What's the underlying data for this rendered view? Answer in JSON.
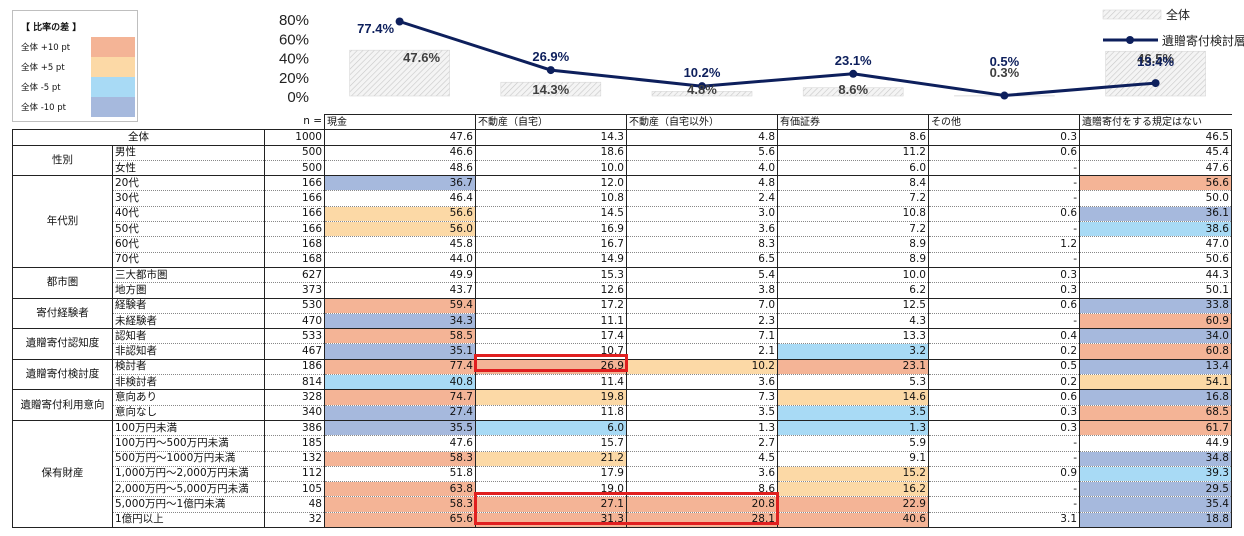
{
  "legend_box": {
    "title": "【 比率の差 】",
    "items": [
      {
        "label": "全体 +10 pt",
        "color": "#f4b496",
        "cls": "hl-p10"
      },
      {
        "label": "全体 +5 pt",
        "color": "#fcd9a6",
        "cls": "hl-p5"
      },
      {
        "label": "全体 -5 pt",
        "color": "#a8daf5",
        "cls": "hl-m5"
      },
      {
        "label": "全体 -10 pt",
        "color": "#a6b9dd",
        "cls": "hl-m10"
      }
    ]
  },
  "chart_data": {
    "type": "bar",
    "categories": [
      "現金",
      "不動産（自宅）",
      "不動産（自宅以外）",
      "有価証券",
      "その他",
      "遺贈寄付をする規定はない"
    ],
    "yticks": [
      "0%",
      "20%",
      "40%",
      "60%",
      "80%"
    ],
    "ylim": [
      0,
      80
    ],
    "legend": [
      "全体",
      "遺贈寄付検討層"
    ],
    "legend_position": "top-right",
    "series": [
      {
        "name": "全体",
        "kind": "bar",
        "values": [
          47.6,
          14.3,
          4.8,
          8.6,
          0.3,
          46.5
        ],
        "labels": [
          "47.6%",
          "14.3%",
          "4.8%",
          "8.6%",
          "0.3%",
          "46.5%"
        ]
      },
      {
        "name": "遺贈寄付検討層",
        "kind": "line",
        "values": [
          77.4,
          26.9,
          10.2,
          23.1,
          0.5,
          13.4
        ],
        "labels": [
          "77.4%",
          "26.9%",
          "10.2%",
          "23.1%",
          "0.5%",
          "13.4%"
        ]
      }
    ],
    "colors": {
      "line": "#0d1f5c",
      "bar_fill": "#f2f2f2",
      "bar_hatch": "#c8c8c8"
    }
  },
  "table": {
    "n_label": "n =",
    "columns": [
      "現金",
      "不動産（自宅）",
      "不動産（自宅以外）",
      "有価証券",
      "その他",
      "遺贈寄付をする規定はない"
    ],
    "total_row": {
      "label": "全体",
      "n": "1000",
      "cells": [
        "47.6",
        "14.3",
        "4.8",
        "8.6",
        "0.3",
        "46.5"
      ],
      "hl": [
        "",
        "",
        "",
        "",
        "",
        ""
      ]
    },
    "groups": [
      {
        "name": "性別",
        "rows": [
          {
            "label": "男性",
            "n": "500",
            "cells": [
              "46.6",
              "18.6",
              "5.6",
              "11.2",
              "0.6",
              "45.4"
            ],
            "hl": [
              "",
              "",
              "",
              "",
              "",
              ""
            ]
          },
          {
            "label": "女性",
            "n": "500",
            "cells": [
              "48.6",
              "10.0",
              "4.0",
              "6.0",
              "-",
              "47.6"
            ],
            "hl": [
              "",
              "",
              "",
              "",
              "",
              ""
            ]
          }
        ]
      },
      {
        "name": "年代別",
        "rows": [
          {
            "label": "20代",
            "n": "166",
            "cells": [
              "36.7",
              "12.0",
              "4.8",
              "8.4",
              "-",
              "56.6"
            ],
            "hl": [
              "m10",
              "",
              "",
              "",
              "",
              "p10"
            ]
          },
          {
            "label": "30代",
            "n": "166",
            "cells": [
              "46.4",
              "10.8",
              "2.4",
              "7.2",
              "-",
              "50.0"
            ],
            "hl": [
              "",
              "",
              "",
              "",
              "",
              ""
            ]
          },
          {
            "label": "40代",
            "n": "166",
            "cells": [
              "56.6",
              "14.5",
              "3.0",
              "10.8",
              "0.6",
              "36.1"
            ],
            "hl": [
              "p5",
              "",
              "",
              "",
              "",
              "m10"
            ]
          },
          {
            "label": "50代",
            "n": "166",
            "cells": [
              "56.0",
              "16.9",
              "3.6",
              "7.2",
              "-",
              "38.6"
            ],
            "hl": [
              "p5",
              "",
              "",
              "",
              "",
              "m5"
            ]
          },
          {
            "label": "60代",
            "n": "168",
            "cells": [
              "45.8",
              "16.7",
              "8.3",
              "8.9",
              "1.2",
              "47.0"
            ],
            "hl": [
              "",
              "",
              "",
              "",
              "",
              ""
            ]
          },
          {
            "label": "70代",
            "n": "168",
            "cells": [
              "44.0",
              "14.9",
              "6.5",
              "8.9",
              "-",
              "50.6"
            ],
            "hl": [
              "",
              "",
              "",
              "",
              "",
              ""
            ]
          }
        ]
      },
      {
        "name": "都市圏",
        "rows": [
          {
            "label": "三大都市圏",
            "n": "627",
            "cells": [
              "49.9",
              "15.3",
              "5.4",
              "10.0",
              "0.3",
              "44.3"
            ],
            "hl": [
              "",
              "",
              "",
              "",
              "",
              ""
            ]
          },
          {
            "label": "地方圏",
            "n": "373",
            "cells": [
              "43.7",
              "12.6",
              "3.8",
              "6.2",
              "0.3",
              "50.1"
            ],
            "hl": [
              "",
              "",
              "",
              "",
              "",
              ""
            ]
          }
        ]
      },
      {
        "name": "寄付経験者",
        "rows": [
          {
            "label": "経験者",
            "n": "530",
            "cells": [
              "59.4",
              "17.2",
              "7.0",
              "12.5",
              "0.6",
              "33.8"
            ],
            "hl": [
              "p10",
              "",
              "",
              "",
              "",
              "m10"
            ]
          },
          {
            "label": "未経験者",
            "n": "470",
            "cells": [
              "34.3",
              "11.1",
              "2.3",
              "4.3",
              "-",
              "60.9"
            ],
            "hl": [
              "m10",
              "",
              "",
              "",
              "",
              "p10"
            ]
          }
        ]
      },
      {
        "name": "遺贈寄付認知度",
        "rows": [
          {
            "label": "認知者",
            "n": "533",
            "cells": [
              "58.5",
              "17.4",
              "7.1",
              "13.3",
              "0.4",
              "34.0"
            ],
            "hl": [
              "p10",
              "",
              "",
              "",
              "",
              "m10"
            ]
          },
          {
            "label": "非認知者",
            "n": "467",
            "cells": [
              "35.1",
              "10.7",
              "2.1",
              "3.2",
              "0.2",
              "60.8"
            ],
            "hl": [
              "m10",
              "",
              "",
              "m5",
              "",
              "p10"
            ]
          }
        ]
      },
      {
        "name": "遺贈寄付検討度",
        "rows": [
          {
            "label": "検討者",
            "n": "186",
            "cells": [
              "77.4",
              "26.9",
              "10.2",
              "23.1",
              "0.5",
              "13.4"
            ],
            "hl": [
              "p10",
              "p10",
              "p5",
              "p10",
              "",
              "m10"
            ]
          },
          {
            "label": "非検討者",
            "n": "814",
            "cells": [
              "40.8",
              "11.4",
              "3.6",
              "5.3",
              "0.2",
              "54.1"
            ],
            "hl": [
              "m5",
              "",
              "",
              "",
              "",
              "p5"
            ]
          }
        ]
      },
      {
        "name": "遺贈寄付利用意向",
        "rows": [
          {
            "label": "意向あり",
            "n": "328",
            "cells": [
              "74.7",
              "19.8",
              "7.3",
              "14.6",
              "0.6",
              "16.8"
            ],
            "hl": [
              "p10",
              "p5",
              "",
              "p5",
              "",
              "m10"
            ]
          },
          {
            "label": "意向なし",
            "n": "340",
            "cells": [
              "27.4",
              "11.8",
              "3.5",
              "3.5",
              "0.3",
              "68.5"
            ],
            "hl": [
              "m10",
              "",
              "",
              "m5",
              "",
              "p10"
            ]
          }
        ]
      },
      {
        "name": "保有財産",
        "rows": [
          {
            "label": "100万円未満",
            "n": "386",
            "cells": [
              "35.5",
              "6.0",
              "1.3",
              "1.3",
              "0.3",
              "61.7"
            ],
            "hl": [
              "m10",
              "m5",
              "",
              "m5",
              "",
              "p10"
            ]
          },
          {
            "label": "100万円～500万円未満",
            "n": "185",
            "cells": [
              "47.6",
              "15.7",
              "2.7",
              "5.9",
              "-",
              "44.9"
            ],
            "hl": [
              "",
              "",
              "",
              "",
              "",
              ""
            ]
          },
          {
            "label": "500万円～1000万円未満",
            "n": "132",
            "cells": [
              "58.3",
              "21.2",
              "4.5",
              "9.1",
              "-",
              "34.8"
            ],
            "hl": [
              "p10",
              "p5",
              "",
              "",
              "",
              "m10"
            ]
          },
          {
            "label": "1,000万円～2,000万円未満",
            "n": "112",
            "cells": [
              "51.8",
              "17.9",
              "3.6",
              "15.2",
              "0.9",
              "39.3"
            ],
            "hl": [
              "",
              "",
              "",
              "p5",
              "",
              "m5"
            ]
          },
          {
            "label": "2,000万円～5,000万円未満",
            "n": "105",
            "cells": [
              "63.8",
              "19.0",
              "8.6",
              "16.2",
              "-",
              "29.5"
            ],
            "hl": [
              "p10",
              "",
              "",
              "p5",
              "",
              "m10"
            ]
          },
          {
            "label": "5,000万円～1億円未満",
            "n": "48",
            "cells": [
              "58.3",
              "27.1",
              "20.8",
              "22.9",
              "-",
              "35.4"
            ],
            "hl": [
              "p10",
              "p10",
              "p10",
              "p10",
              "",
              "m10"
            ]
          },
          {
            "label": "1億円以上",
            "n": "32",
            "cells": [
              "65.6",
              "31.3",
              "28.1",
              "40.6",
              "3.1",
              "18.8"
            ],
            "hl": [
              "p10",
              "p10",
              "p10",
              "p10",
              "",
              "m10"
            ]
          }
        ]
      }
    ]
  }
}
